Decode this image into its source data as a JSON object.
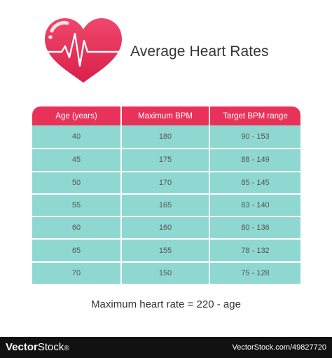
{
  "header": {
    "title": "Average Heart Rates",
    "icon": "heart-pulse-icon",
    "heart_color": "#e8325a"
  },
  "table": {
    "header_color": "#e8325a",
    "row_color": "#8fd8d2",
    "columns": [
      "Age (years)",
      "Maximum BPM",
      "Target BPM range"
    ],
    "rows": [
      [
        "40",
        "180",
        "90 - 153"
      ],
      [
        "45",
        "175",
        "88 - 149"
      ],
      [
        "50",
        "170",
        "85 - 145"
      ],
      [
        "55",
        "165",
        "83 - 140"
      ],
      [
        "60",
        "160",
        "80 - 136"
      ],
      [
        "65",
        "155",
        "78 - 132"
      ],
      [
        "70",
        "150",
        "75 - 128"
      ]
    ]
  },
  "formula": "Maximum heart rate = 220 - age",
  "footer": {
    "brand_mark": "Vector",
    "brand_name": "Stock",
    "brand_reg": "®",
    "stock_id": "VectorStock.com/49827720"
  }
}
